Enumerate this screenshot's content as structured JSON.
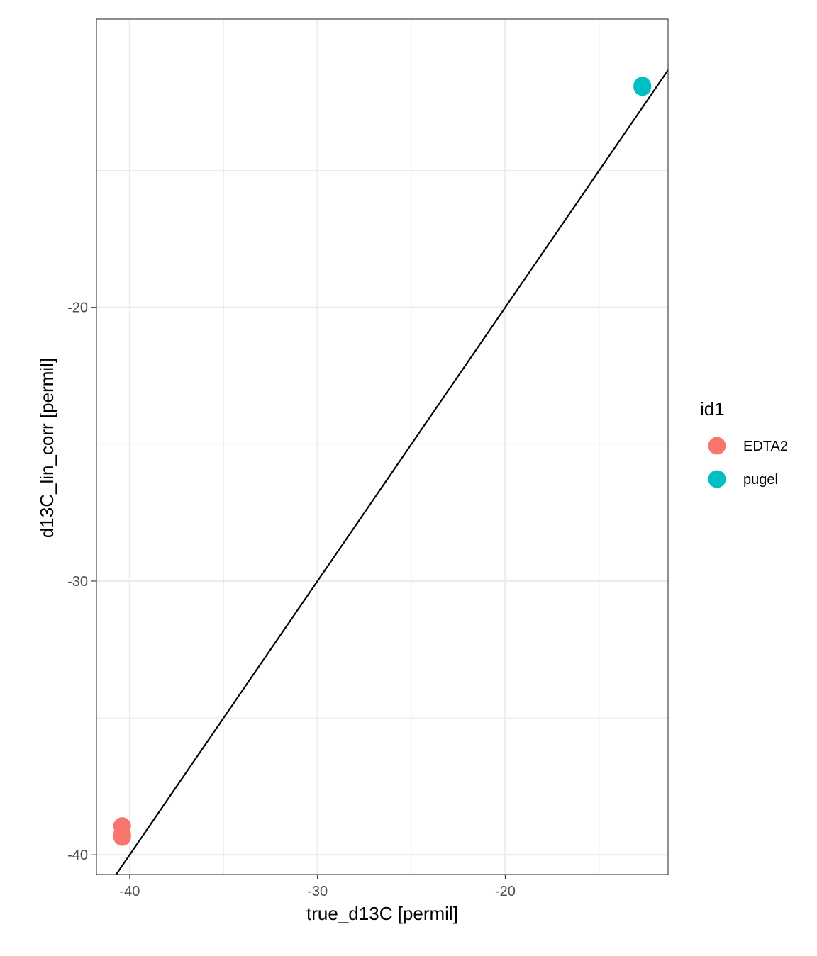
{
  "chart_data": {
    "type": "scatter",
    "title": "",
    "xlabel": "true_d13C [permil]",
    "ylabel": "d13C_lin_corr [permil]",
    "xlim": [
      -41.77,
      -11.33
    ],
    "ylim": [
      -40.72,
      -9.47
    ],
    "x_ticks": [
      -40,
      -30,
      -20
    ],
    "x_tick_labels": [
      "-40",
      "-30",
      "-20"
    ],
    "x_minor_ticks": [
      -35,
      -25,
      -15
    ],
    "y_ticks": [
      -40,
      -30,
      -20
    ],
    "y_tick_labels": [
      "-40",
      "-30",
      "-20"
    ],
    "y_minor_ticks": [
      -35,
      -25,
      -15
    ],
    "grid": true,
    "legend": {
      "title": "id1",
      "position": "right",
      "entries": [
        {
          "label": "EDTA2",
          "color": "#F8766D"
        },
        {
          "label": "pugel",
          "color": "#00BFC4"
        }
      ]
    },
    "reference_line": {
      "slope": 1,
      "intercept": 0,
      "color": "#000000"
    },
    "series": [
      {
        "name": "EDTA2",
        "color": "#F8766D",
        "points": [
          {
            "x": -40.4,
            "y": -38.95
          },
          {
            "x": -40.4,
            "y": -39.25
          },
          {
            "x": -40.4,
            "y": -39.35
          }
        ]
      },
      {
        "name": "pugel",
        "color": "#00BFC4",
        "points": [
          {
            "x": -12.7,
            "y": -11.9
          },
          {
            "x": -12.7,
            "y": -11.95
          }
        ]
      }
    ]
  }
}
